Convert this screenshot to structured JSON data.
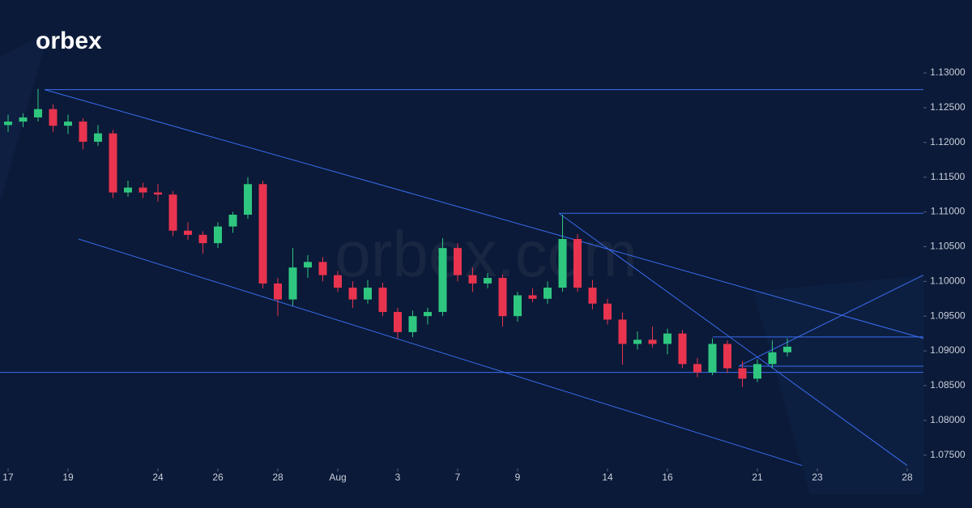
{
  "logo": "orbex",
  "watermark": "orbex.com",
  "chart_data": {
    "type": "candlestick",
    "x": [
      0,
      0.5,
      1,
      1.5,
      2,
      2.5,
      3,
      3.5,
      4,
      4.5,
      5,
      5.5,
      6,
      6.5,
      7,
      7.5,
      8,
      8.5,
      9,
      9.5,
      10,
      10.5,
      11,
      11.5,
      12,
      12.5,
      13,
      13.5,
      14,
      14.5,
      15,
      15.5,
      16,
      16.5,
      17,
      17.5,
      18,
      18.5,
      19,
      19.5,
      20,
      20.5,
      21,
      21.5,
      22,
      22.5,
      23,
      23.5,
      24,
      24.5,
      25,
      25.5,
      26
    ],
    "open": [
      1.1225,
      1.123,
      1.1236,
      1.1248,
      1.1224,
      1.123,
      1.1201,
      1.1213,
      1.1128,
      1.1135,
      1.1128,
      1.1125,
      1.1073,
      1.1067,
      1.1055,
      1.1079,
      1.1096,
      1.114,
      1.0997,
      1.0974,
      1.102,
      1.1028,
      1.1009,
      1.0991,
      1.0974,
      1.0991,
      1.0956,
      1.0927,
      1.095,
      1.0956,
      1.1048,
      1.1009,
      1.0997,
      1.1005,
      1.095,
      1.098,
      1.0975,
      1.0991,
      1.1061,
      1.0991,
      1.0968,
      1.0945,
      1.091,
      1.0916,
      1.091,
      1.0925,
      1.0881,
      1.0869,
      1.091,
      1.0875,
      1.086,
      1.0881,
      1.0898
    ],
    "high": [
      1.124,
      1.1242,
      1.1277,
      1.1255,
      1.124,
      1.1235,
      1.1225,
      1.1218,
      1.1145,
      1.1142,
      1.114,
      1.113,
      1.1085,
      1.1072,
      1.1085,
      1.11,
      1.115,
      1.1145,
      1.1005,
      1.1048,
      1.1038,
      1.1035,
      1.1015,
      1.1,
      1.1002,
      1.0998,
      1.0962,
      1.0958,
      1.0962,
      1.1062,
      1.1055,
      1.102,
      1.1012,
      1.101,
      1.0985,
      1.099,
      1.1,
      1.1096,
      1.1068,
      1.1002,
      1.0975,
      1.0955,
      1.0928,
      1.0935,
      1.0932,
      1.093,
      1.089,
      1.0918,
      1.0915,
      1.0885,
      1.0888,
      1.0915,
      1.0918
    ],
    "low": [
      1.1215,
      1.1222,
      1.123,
      1.1215,
      1.1212,
      1.119,
      1.1195,
      1.112,
      1.1122,
      1.112,
      1.1115,
      1.1065,
      1.106,
      1.104,
      1.1048,
      1.107,
      1.109,
      1.099,
      1.095,
      1.0965,
      1.1005,
      1.1,
      1.0985,
      1.0962,
      1.0968,
      1.095,
      1.0918,
      1.092,
      1.0938,
      1.095,
      1.1,
      1.0985,
      1.099,
      1.0935,
      1.0942,
      1.097,
      1.0968,
      1.0985,
      1.0985,
      1.096,
      1.0938,
      1.088,
      1.0902,
      1.0905,
      1.0895,
      1.0875,
      1.0862,
      1.0865,
      1.0868,
      1.0848,
      1.0855,
      1.0875,
      1.0892
    ],
    "close": [
      1.123,
      1.1236,
      1.1248,
      1.1224,
      1.123,
      1.1201,
      1.1213,
      1.1128,
      1.1135,
      1.1128,
      1.1125,
      1.1073,
      1.1067,
      1.1055,
      1.1079,
      1.1096,
      1.114,
      1.0997,
      1.0974,
      1.102,
      1.1028,
      1.1009,
      1.0991,
      1.0974,
      1.0991,
      1.0956,
      1.0927,
      1.095,
      1.0956,
      1.1048,
      1.1009,
      1.0997,
      1.1005,
      1.095,
      1.098,
      1.0975,
      1.0991,
      1.1061,
      1.0991,
      1.0968,
      1.0945,
      1.091,
      1.0916,
      1.091,
      1.0925,
      1.0881,
      1.0869,
      1.091,
      1.0875,
      1.086,
      1.0881,
      1.0898,
      1.0906
    ],
    "up_color": "#2fc77f",
    "down_color": "#e8344e",
    "xlim": [
      -0.27,
      30.54
    ],
    "ylim": [
      1.0731,
      1.1405
    ],
    "xticks": [
      {
        "value": 0,
        "label": "17"
      },
      {
        "value": 2,
        "label": "19"
      },
      {
        "value": 5,
        "label": "24"
      },
      {
        "value": 7,
        "label": "26"
      },
      {
        "value": 9,
        "label": "28"
      },
      {
        "value": 11,
        "label": "Aug"
      },
      {
        "value": 13,
        "label": "3"
      },
      {
        "value": 15,
        "label": "7"
      },
      {
        "value": 17,
        "label": "9"
      },
      {
        "value": 20,
        "label": "14"
      },
      {
        "value": 22,
        "label": "16"
      },
      {
        "value": 25,
        "label": "21"
      },
      {
        "value": 27,
        "label": "23"
      },
      {
        "value": 30,
        "label": "28"
      }
    ],
    "yticks": [
      {
        "value": 1.13,
        "label": "1.13000"
      },
      {
        "value": 1.125,
        "label": "1.12500"
      },
      {
        "value": 1.12,
        "label": "1.12000"
      },
      {
        "value": 1.115,
        "label": "1.11500"
      },
      {
        "value": 1.11,
        "label": "1.11000"
      },
      {
        "value": 1.105,
        "label": "1.10500"
      },
      {
        "value": 1.1,
        "label": "1.10000"
      },
      {
        "value": 1.095,
        "label": "1.09500"
      },
      {
        "value": 1.09,
        "label": "1.09000"
      },
      {
        "value": 1.085,
        "label": "1.08500"
      },
      {
        "value": 1.08,
        "label": "1.08000"
      },
      {
        "value": 1.075,
        "label": "1.07500"
      }
    ],
    "trendline_color": "#3a6df0",
    "trendlines": [
      {
        "x": [
          1.22,
          30.54
        ],
        "y": [
          1.1276,
          1.1276
        ]
      },
      {
        "x": [
          1.22,
          30.54
        ],
        "y": [
          1.1276,
          1.0918
        ]
      },
      {
        "x": [
          2.35,
          26.49
        ],
        "y": [
          1.1061,
          1.0735
        ]
      },
      {
        "x": [
          -0.27,
          30.54
        ],
        "y": [
          1.0869,
          1.0869
        ]
      },
      {
        "x": [
          24.38,
          30.54
        ],
        "y": [
          1.0878,
          1.0878
        ]
      },
      {
        "x": [
          18.38,
          30.54
        ],
        "y": [
          1.1098,
          1.1098
        ]
      },
      {
        "x": [
          23.51,
          30.54
        ],
        "y": [
          1.092,
          1.092
        ]
      },
      {
        "x": [
          18.38,
          30
        ],
        "y": [
          1.1098,
          1.0735
        ]
      },
      {
        "x": [
          24.38,
          30.54
        ],
        "y": [
          1.0878,
          1.1009
        ]
      }
    ]
  }
}
